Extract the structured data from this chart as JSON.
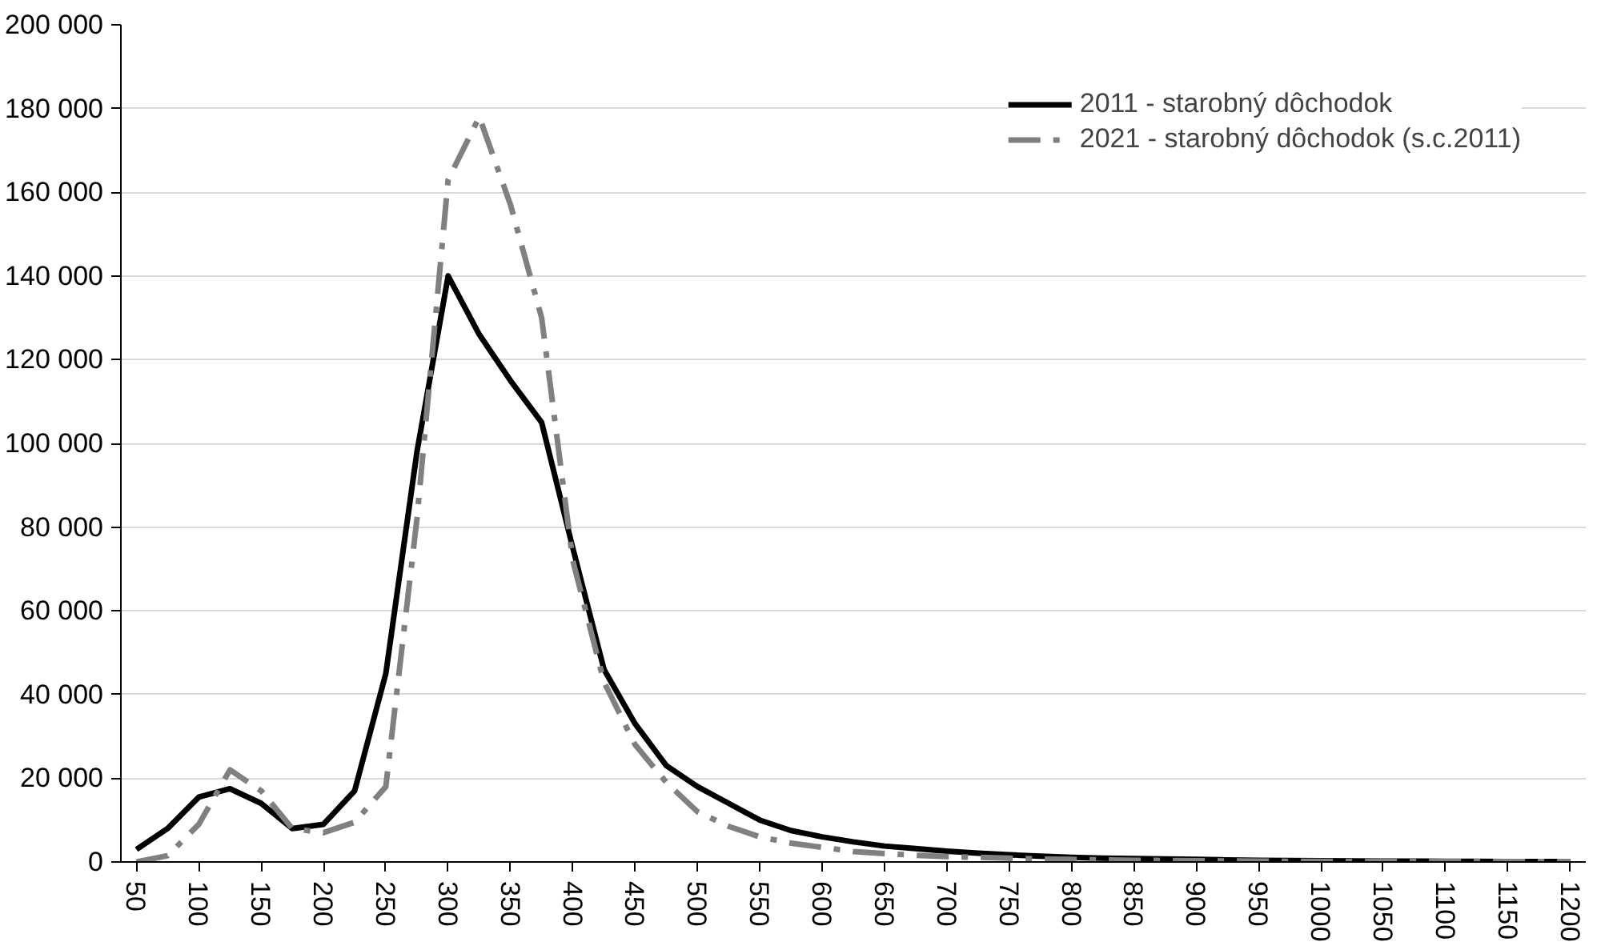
{
  "chart_data": {
    "type": "line",
    "categories": [
      "50",
      null,
      "100",
      null,
      "150",
      null,
      "200",
      null,
      "250",
      null,
      "300",
      null,
      "350",
      null,
      "400",
      null,
      "450",
      null,
      "500",
      null,
      "550",
      null,
      "600",
      null,
      "650",
      null,
      "700",
      null,
      "750",
      null,
      "800",
      null,
      "850",
      null,
      "900",
      null,
      "950",
      null,
      "1000",
      null,
      "1050",
      null,
      "1100",
      null,
      "1150",
      null,
      "1200"
    ],
    "series": [
      {
        "name": "2011 - starobný dôchodok",
        "color": "#000000",
        "line_style": "solid",
        "values": [
          3000,
          8000,
          15500,
          17500,
          14000,
          8000,
          9000,
          17000,
          45000,
          98000,
          140000,
          126000,
          115000,
          105000,
          75000,
          46000,
          33000,
          23000,
          18000,
          14000,
          10000,
          7500,
          6000,
          4800,
          3800,
          3200,
          2600,
          2100,
          1700,
          1400,
          1100,
          900,
          800,
          700,
          600,
          500,
          400,
          350,
          300,
          250,
          200,
          200,
          150,
          150,
          100,
          100,
          100
        ]
      },
      {
        "name": "2021 - starobný dôchodok (s.c.2011)",
        "color": "#808080",
        "line_style": "dashed",
        "values": [
          0,
          1500,
          9000,
          22000,
          17000,
          8000,
          7000,
          9500,
          18000,
          82000,
          163000,
          178000,
          157000,
          130000,
          72000,
          43000,
          28000,
          19000,
          12000,
          8500,
          6000,
          4500,
          3500,
          2500,
          2000,
          1600,
          1300,
          1100,
          900,
          700,
          600,
          500,
          400,
          350,
          300,
          250,
          200,
          150,
          150,
          100,
          100,
          100,
          100,
          100,
          100,
          100,
          100
        ]
      }
    ],
    "ylim": [
      0,
      200000
    ],
    "yticks": [
      {
        "value": 0,
        "label": "0"
      },
      {
        "value": 20000,
        "label": "20 000"
      },
      {
        "value": 40000,
        "label": "40 000"
      },
      {
        "value": 60000,
        "label": "60 000"
      },
      {
        "value": 80000,
        "label": "80 000"
      },
      {
        "value": 100000,
        "label": "100 000"
      },
      {
        "value": 120000,
        "label": "120 000"
      },
      {
        "value": 140000,
        "label": "140 000"
      },
      {
        "value": 160000,
        "label": "160 000"
      },
      {
        "value": 180000,
        "label": "180 000"
      },
      {
        "value": 200000,
        "label": "200 000"
      }
    ],
    "grid": "y",
    "legend": "top right",
    "marker": "none"
  }
}
